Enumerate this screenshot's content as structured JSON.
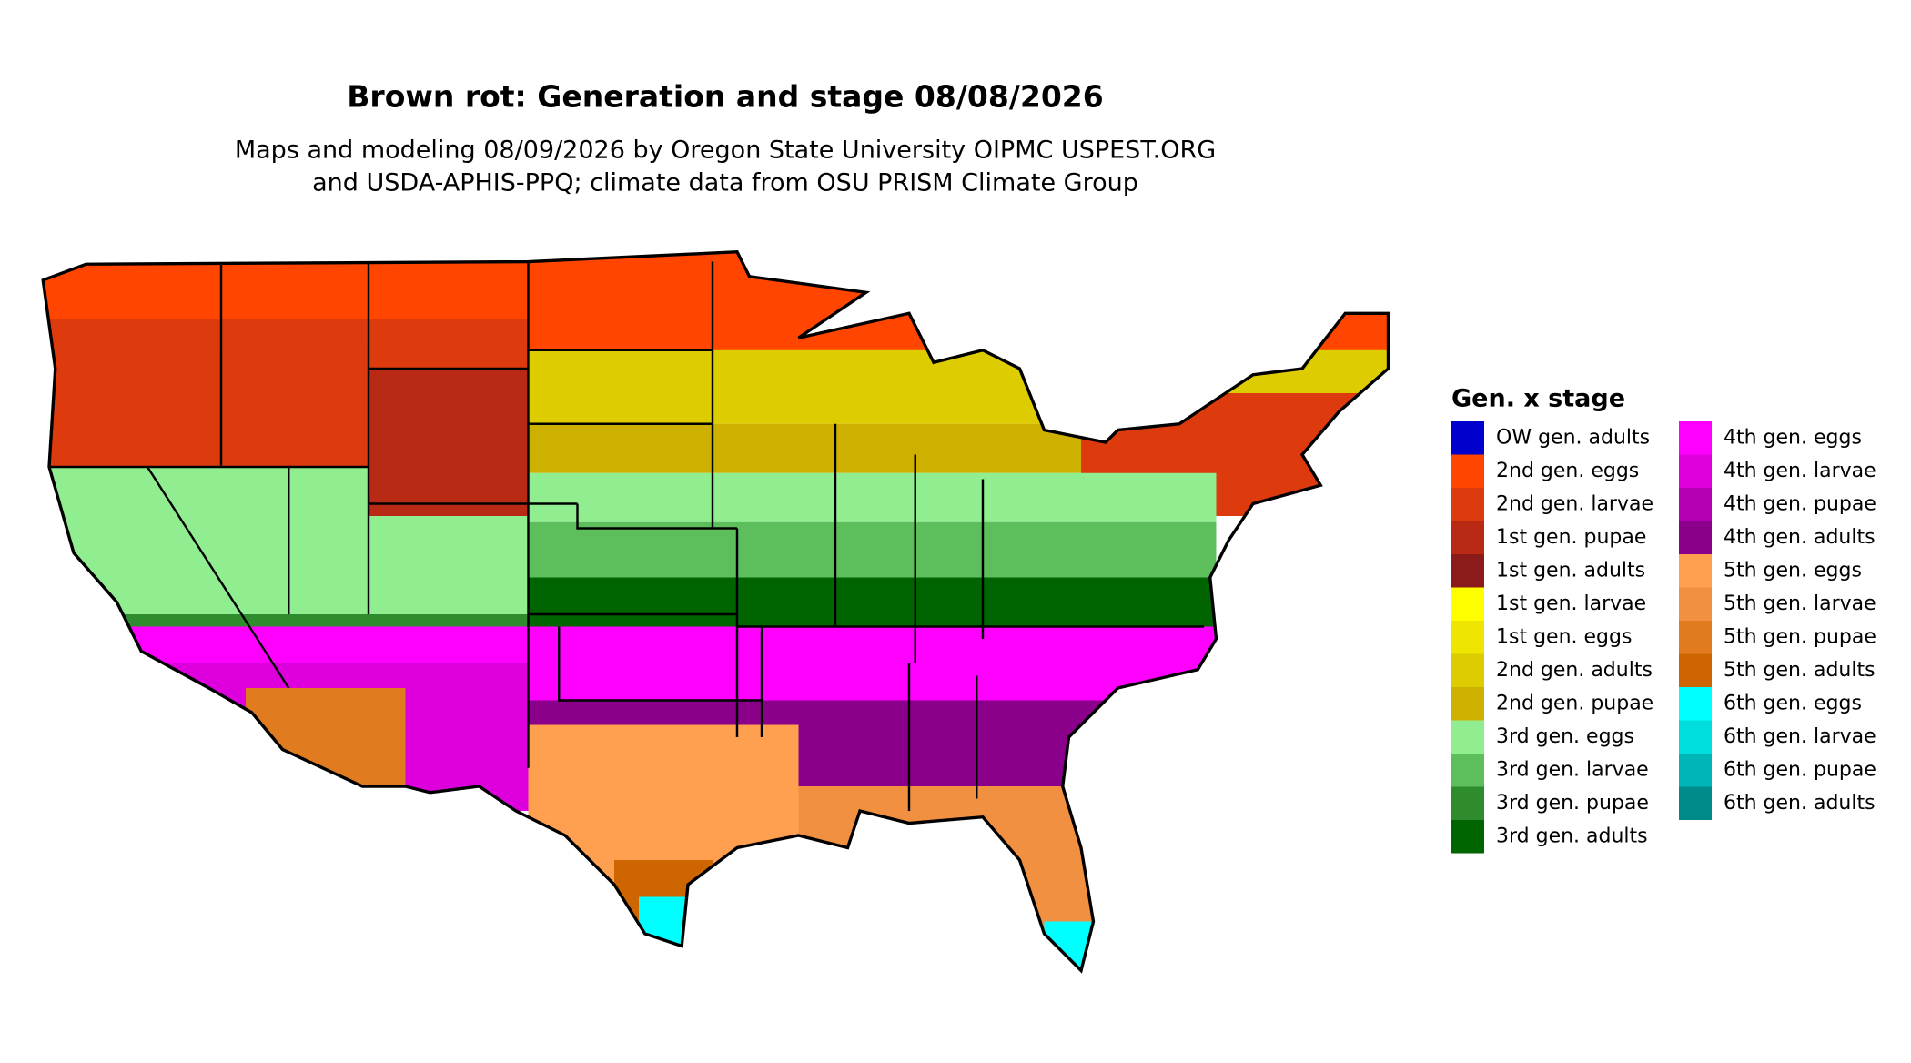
{
  "title": "Brown rot: Generation and stage 08/08/2026",
  "subtitle": [
    "Maps and modeling 08/09/2026 by Oregon State University OIPMC USPEST.ORG",
    "and USDA-APHIS-PPQ; climate data from OSU PRISM Climate Group"
  ],
  "legend": {
    "title": "Gen. x stage",
    "items": [
      {
        "label": "OW gen. adults",
        "color": "#0000cd"
      },
      {
        "label": "2nd gen. eggs",
        "color": "#ff4500"
      },
      {
        "label": "2nd gen. larvae",
        "color": "#dd3a0e"
      },
      {
        "label": "1st gen. pupae",
        "color": "#b82a14"
      },
      {
        "label": "1st gen. adults",
        "color": "#8b1a1a"
      },
      {
        "label": "1st gen. larvae",
        "color": "#ffff00"
      },
      {
        "label": "1st gen. eggs",
        "color": "#eee600"
      },
      {
        "label": "2nd gen. adults",
        "color": "#ddcc00"
      },
      {
        "label": "2nd gen. pupae",
        "color": "#cdb000"
      },
      {
        "label": "3rd gen. eggs",
        "color": "#90ee90"
      },
      {
        "label": "3rd gen. larvae",
        "color": "#5cbf5c"
      },
      {
        "label": "3rd gen. pupae",
        "color": "#2e8b2e"
      },
      {
        "label": "3rd gen. adults",
        "color": "#006400"
      },
      {
        "label": "4th gen. eggs",
        "color": "#ff00ff"
      },
      {
        "label": "4th gen. larvae",
        "color": "#dd00dd"
      },
      {
        "label": "4th gen. pupae",
        "color": "#b300b3"
      },
      {
        "label": "4th gen. adults",
        "color": "#8b008b"
      },
      {
        "label": "5th gen. eggs",
        "color": "#ffa050"
      },
      {
        "label": "5th gen. larvae",
        "color": "#f09040"
      },
      {
        "label": "5th gen. pupae",
        "color": "#e07b20"
      },
      {
        "label": "5th gen. adults",
        "color": "#cd6600"
      },
      {
        "label": "6th gen. eggs",
        "color": "#00ffff"
      },
      {
        "label": "6th gen. larvae",
        "color": "#00dddd"
      },
      {
        "label": "6th gen. pupae",
        "color": "#00b5b5"
      },
      {
        "label": "6th gen. adults",
        "color": "#008b8b"
      }
    ]
  }
}
